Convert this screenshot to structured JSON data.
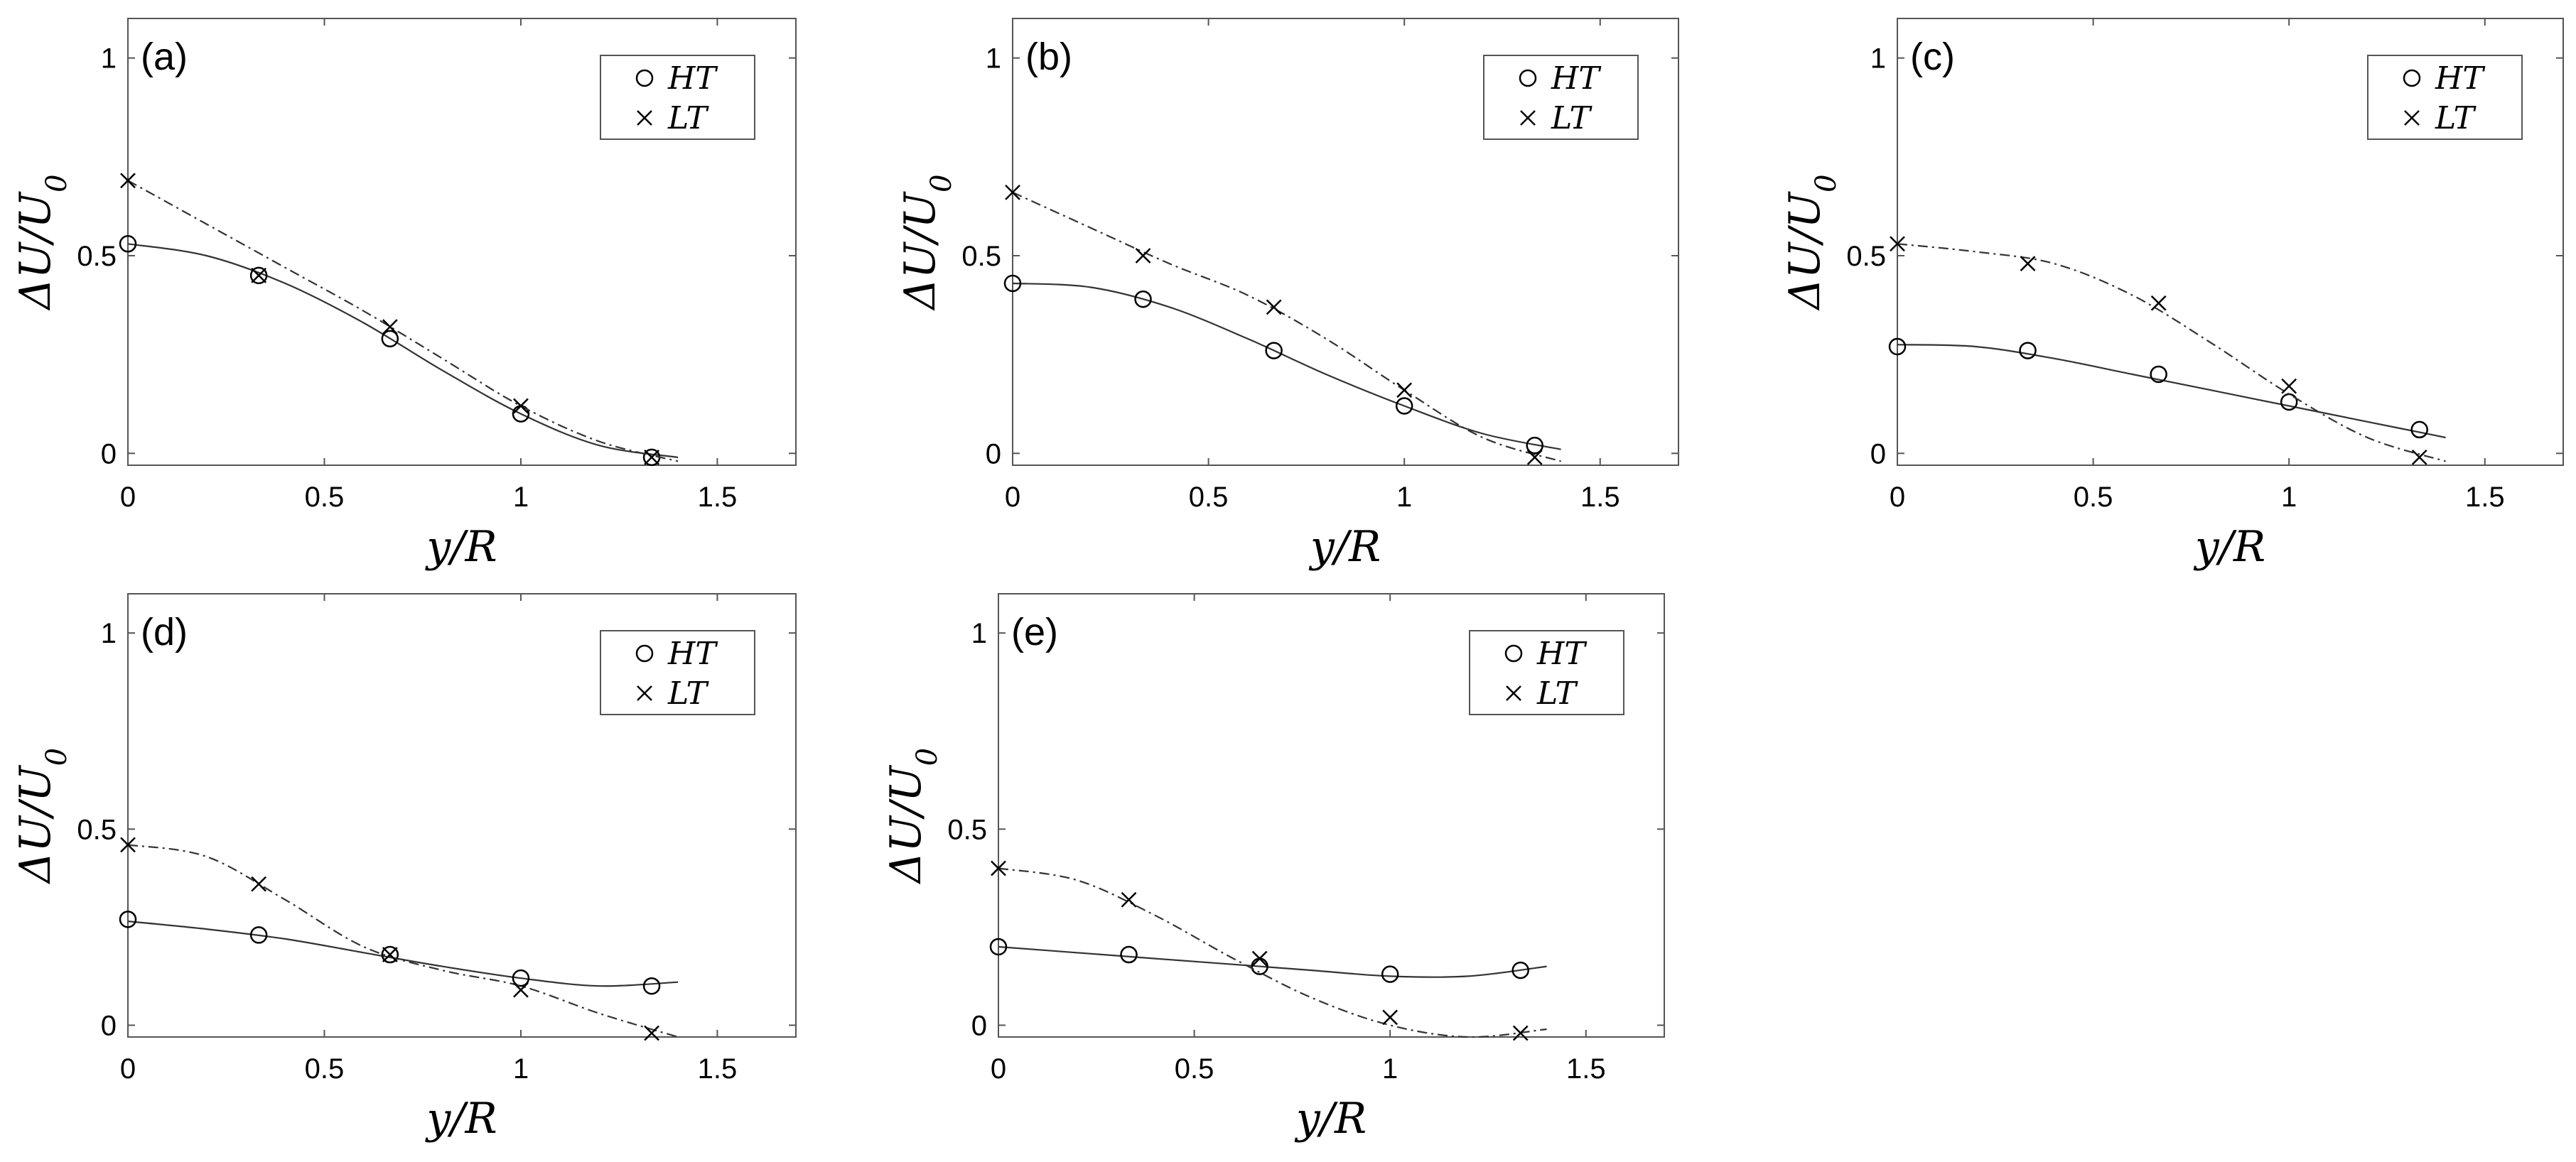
{
  "chart_data": [
    {
      "type": "line",
      "panel_label": "(a)",
      "xlabel": "y/R",
      "ylabel": "ΔU/U",
      "ylabel_sub": "0",
      "xlim": [
        0,
        1.7
      ],
      "ylim": [
        -0.03,
        1.1
      ],
      "xticks": [
        0,
        0.5,
        1,
        1.5
      ],
      "xtick_labels": [
        "0",
        "0.5",
        "1",
        "1.5"
      ],
      "yticks": [
        0,
        0.5,
        1
      ],
      "ytick_labels": [
        "0",
        "0.5",
        "1"
      ],
      "legend": [
        "HT",
        "LT"
      ],
      "series": [
        {
          "name": "HT",
          "marker": "circle",
          "line": "solid",
          "x": [
            0,
            0.333,
            0.667,
            1.0,
            1.333
          ],
          "y": [
            0.53,
            0.45,
            0.29,
            0.1,
            -0.01
          ],
          "fit_x": [
            0,
            0.2,
            0.4,
            0.6,
            0.8,
            1.0,
            1.2,
            1.4
          ],
          "fit_y": [
            0.53,
            0.5,
            0.43,
            0.33,
            0.21,
            0.1,
            0.02,
            -0.01
          ]
        },
        {
          "name": "LT",
          "marker": "cross",
          "line": "dashdot",
          "x": [
            0,
            0.333,
            0.667,
            1.0,
            1.333
          ],
          "y": [
            0.69,
            0.45,
            0.32,
            0.12,
            -0.01
          ],
          "fit_x": [
            0,
            0.2,
            0.4,
            0.6,
            0.8,
            1.0,
            1.2,
            1.4
          ],
          "fit_y": [
            0.69,
            0.58,
            0.47,
            0.36,
            0.24,
            0.12,
            0.03,
            -0.02
          ]
        }
      ]
    },
    {
      "type": "line",
      "panel_label": "(b)",
      "xlabel": "y/R",
      "ylabel": "ΔU/U",
      "ylabel_sub": "0",
      "xlim": [
        0,
        1.7
      ],
      "ylim": [
        -0.03,
        1.1
      ],
      "xticks": [
        0,
        0.5,
        1,
        1.5
      ],
      "xtick_labels": [
        "0",
        "0.5",
        "1",
        "1.5"
      ],
      "yticks": [
        0,
        0.5,
        1
      ],
      "ytick_labels": [
        "0",
        "0.5",
        "1"
      ],
      "legend": [
        "HT",
        "LT"
      ],
      "series": [
        {
          "name": "HT",
          "marker": "circle",
          "line": "solid",
          "x": [
            0,
            0.333,
            0.667,
            1.0,
            1.333
          ],
          "y": [
            0.43,
            0.39,
            0.26,
            0.12,
            0.02
          ],
          "fit_x": [
            0,
            0.2,
            0.4,
            0.6,
            0.8,
            1.0,
            1.2,
            1.4
          ],
          "fit_y": [
            0.43,
            0.42,
            0.37,
            0.29,
            0.2,
            0.12,
            0.05,
            0.01
          ]
        },
        {
          "name": "LT",
          "marker": "cross",
          "line": "dashdot",
          "x": [
            0,
            0.333,
            0.667,
            1.0,
            1.333
          ],
          "y": [
            0.66,
            0.5,
            0.37,
            0.16,
            -0.01
          ],
          "fit_x": [
            0,
            0.2,
            0.4,
            0.6,
            0.8,
            1.0,
            1.2,
            1.4
          ],
          "fit_y": [
            0.66,
            0.57,
            0.48,
            0.4,
            0.29,
            0.16,
            0.04,
            -0.02
          ]
        }
      ]
    },
    {
      "type": "line",
      "panel_label": "(c)",
      "xlabel": "y/R",
      "ylabel": "ΔU/U",
      "ylabel_sub": "0",
      "xlim": [
        0,
        1.7
      ],
      "ylim": [
        -0.03,
        1.1
      ],
      "xticks": [
        0,
        0.5,
        1,
        1.5
      ],
      "xtick_labels": [
        "0",
        "0.5",
        "1",
        "1.5"
      ],
      "yticks": [
        0,
        0.5,
        1
      ],
      "ytick_labels": [
        "0",
        "0.5",
        "1"
      ],
      "legend": [
        "HT",
        "LT"
      ],
      "series": [
        {
          "name": "HT",
          "marker": "circle",
          "line": "solid",
          "x": [
            0,
            0.333,
            0.667,
            1.0,
            1.333
          ],
          "y": [
            0.27,
            0.26,
            0.2,
            0.13,
            0.06
          ],
          "fit_x": [
            0,
            0.2,
            0.4,
            0.6,
            0.8,
            1.0,
            1.2,
            1.4
          ],
          "fit_y": [
            0.275,
            0.27,
            0.24,
            0.2,
            0.16,
            0.12,
            0.08,
            0.04
          ]
        },
        {
          "name": "LT",
          "marker": "cross",
          "line": "dashdot",
          "x": [
            0,
            0.333,
            0.667,
            1.0,
            1.333
          ],
          "y": [
            0.53,
            0.48,
            0.38,
            0.17,
            -0.01
          ],
          "fit_x": [
            0,
            0.2,
            0.4,
            0.6,
            0.8,
            1.0,
            1.2,
            1.4
          ],
          "fit_y": [
            0.53,
            0.51,
            0.48,
            0.4,
            0.28,
            0.15,
            0.04,
            -0.02
          ]
        }
      ]
    },
    {
      "type": "line",
      "panel_label": "(d)",
      "xlabel": "y/R",
      "ylabel": "ΔU/U",
      "ylabel_sub": "0",
      "xlim": [
        0,
        1.7
      ],
      "ylim": [
        -0.03,
        1.1
      ],
      "xticks": [
        0,
        0.5,
        1,
        1.5
      ],
      "xtick_labels": [
        "0",
        "0.5",
        "1",
        "1.5"
      ],
      "yticks": [
        0,
        0.5,
        1
      ],
      "ytick_labels": [
        "0",
        "0.5",
        "1"
      ],
      "legend": [
        "HT",
        "LT"
      ],
      "series": [
        {
          "name": "HT",
          "marker": "circle",
          "line": "solid",
          "x": [
            0,
            0.333,
            0.667,
            1.0,
            1.333
          ],
          "y": [
            0.27,
            0.23,
            0.18,
            0.12,
            0.1
          ],
          "fit_x": [
            0,
            0.2,
            0.4,
            0.6,
            0.8,
            1.0,
            1.2,
            1.4
          ],
          "fit_y": [
            0.265,
            0.245,
            0.22,
            0.185,
            0.15,
            0.12,
            0.1,
            0.11
          ]
        },
        {
          "name": "LT",
          "marker": "cross",
          "line": "dashdot",
          "x": [
            0,
            0.333,
            0.667,
            1.0,
            1.333
          ],
          "y": [
            0.46,
            0.36,
            0.18,
            0.09,
            -0.02
          ],
          "fit_x": [
            0,
            0.2,
            0.4,
            0.6,
            0.8,
            1.0,
            1.2,
            1.4
          ],
          "fit_y": [
            0.46,
            0.43,
            0.32,
            0.2,
            0.14,
            0.1,
            0.03,
            -0.03
          ]
        }
      ]
    },
    {
      "type": "line",
      "panel_label": "(e)",
      "xlabel": "y/R",
      "ylabel": "ΔU/U",
      "ylabel_sub": "0",
      "xlim": [
        0,
        1.7
      ],
      "ylim": [
        -0.03,
        1.1
      ],
      "xticks": [
        0,
        0.5,
        1,
        1.5
      ],
      "xtick_labels": [
        "0",
        "0.5",
        "1",
        "1.5"
      ],
      "yticks": [
        0,
        0.5,
        1
      ],
      "ytick_labels": [
        "0",
        "0.5",
        "1"
      ],
      "legend": [
        "HT",
        "LT"
      ],
      "series": [
        {
          "name": "HT",
          "marker": "circle",
          "line": "solid",
          "x": [
            0,
            0.333,
            0.667,
            1.0,
            1.333
          ],
          "y": [
            0.2,
            0.18,
            0.15,
            0.13,
            0.14
          ],
          "fit_x": [
            0,
            0.2,
            0.4,
            0.6,
            0.8,
            1.0,
            1.2,
            1.4
          ],
          "fit_y": [
            0.2,
            0.185,
            0.17,
            0.155,
            0.14,
            0.125,
            0.125,
            0.15
          ]
        },
        {
          "name": "LT",
          "marker": "cross",
          "line": "dashdot",
          "x": [
            0,
            0.333,
            0.667,
            1.0,
            1.333
          ],
          "y": [
            0.4,
            0.32,
            0.17,
            0.02,
            -0.02
          ],
          "fit_x": [
            0,
            0.2,
            0.4,
            0.6,
            0.8,
            1.0,
            1.2,
            1.4
          ],
          "fit_y": [
            0.4,
            0.37,
            0.28,
            0.17,
            0.07,
            0.0,
            -0.03,
            -0.01
          ]
        }
      ]
    }
  ]
}
